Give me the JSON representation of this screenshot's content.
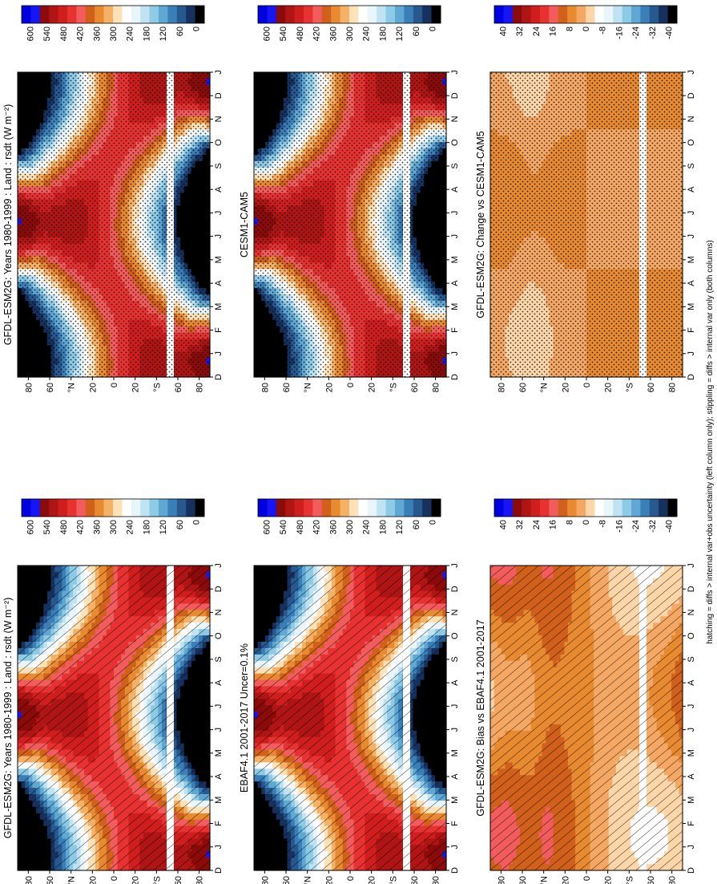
{
  "figure": {
    "footnote": "hatching = diffs > internal var+obs uncertainty (left column only); stippling = diffs > internal var only (both columns)"
  },
  "chart_data": [
    {
      "type": "heatmap",
      "title": "GFDL-ESM2G: Years 1980-1999 : Land : rsdt (W m⁻²)",
      "x_ticks": [
        "D",
        "J",
        "F",
        "M",
        "A",
        "M",
        "J",
        "J",
        "A",
        "S",
        "O",
        "N",
        "D",
        "J"
      ],
      "y_ticks": [
        "80",
        "60",
        "°N",
        "20",
        "0",
        "20",
        "°S",
        "60",
        "80"
      ],
      "colorbar": {
        "labels": [
          "600",
          "540",
          "480",
          "420",
          "360",
          "300",
          "240",
          "180",
          "120",
          "60",
          "0"
        ],
        "colors": [
          "#0000e0",
          "#1515f5",
          "#8b0a0a",
          "#b01515",
          "#d01e1e",
          "#e83232",
          "#f25c5c",
          "#d0601a",
          "#e88a30",
          "#f5b266",
          "#fde2b8",
          "#ffffff",
          "#e8f6fc",
          "#bfe3f2",
          "#8ccae6",
          "#5fa8d3",
          "#3a7fb8",
          "#27588e",
          "#16315e",
          "#000000"
        ]
      },
      "overlay": "hatching"
    },
    {
      "type": "heatmap",
      "title": "GFDL-ESM2G: Years 1980-1999 : Land : rsdt (W m⁻²)",
      "x_ticks": [
        "D",
        "J",
        "F",
        "M",
        "A",
        "M",
        "J",
        "J",
        "A",
        "S",
        "O",
        "N",
        "D",
        "J"
      ],
      "y_ticks": [
        "80",
        "60",
        "°N",
        "20",
        "0",
        "20",
        "°S",
        "60",
        "80"
      ],
      "colorbar": {
        "labels": [
          "600",
          "540",
          "480",
          "420",
          "360",
          "300",
          "240",
          "180",
          "120",
          "60",
          "0"
        ]
      },
      "overlay": "stippling"
    },
    {
      "type": "heatmap",
      "title": "EBAF4.1 2001-2017 Uncer=0.1%",
      "x_ticks": [
        "D",
        "J",
        "F",
        "M",
        "A",
        "M",
        "J",
        "J",
        "A",
        "S",
        "O",
        "N",
        "D",
        "J"
      ],
      "y_ticks": [
        "80",
        "60",
        "°N",
        "20",
        "0",
        "20",
        "°S",
        "60",
        "80"
      ],
      "colorbar": {
        "labels": [
          "600",
          "540",
          "480",
          "420",
          "360",
          "300",
          "240",
          "180",
          "120",
          "60",
          "0"
        ]
      },
      "overlay": "hatching"
    },
    {
      "type": "heatmap",
      "title": "CESM1-CAM5",
      "x_ticks": [
        "D",
        "J",
        "F",
        "M",
        "A",
        "M",
        "J",
        "J",
        "A",
        "S",
        "O",
        "N",
        "D",
        "J"
      ],
      "y_ticks": [
        "80",
        "60",
        "°N",
        "20",
        "0",
        "20",
        "°S",
        "60",
        "80"
      ],
      "colorbar": {
        "labels": [
          "600",
          "540",
          "480",
          "420",
          "360",
          "300",
          "240",
          "180",
          "120",
          "60",
          "0"
        ]
      },
      "overlay": "stippling"
    },
    {
      "type": "heatmap",
      "title": "GFDL-ESM2G: Bias vs EBAF4.1 2001-2017",
      "x_ticks": [
        "D",
        "J",
        "F",
        "M",
        "A",
        "M",
        "J",
        "J",
        "A",
        "S",
        "O",
        "N",
        "D",
        "J"
      ],
      "y_ticks": [
        "80",
        "60",
        "°N",
        "20",
        "0",
        "20",
        "°S",
        "60",
        "80"
      ],
      "colorbar": {
        "labels": [
          "40",
          "32",
          "24",
          "16",
          "8",
          "0",
          "-8",
          "-16",
          "-24",
          "-32",
          "-40"
        ],
        "colors": [
          "#0000e0",
          "#1515f5",
          "#8b0a0a",
          "#b01515",
          "#d01e1e",
          "#e83232",
          "#f25c5c",
          "#d0601a",
          "#e88a30",
          "#f5a863",
          "#fcd6a8",
          "#ffffff",
          "#e8f6fc",
          "#bfe3f2",
          "#8ccae6",
          "#5fa8d3",
          "#3a7fb8",
          "#27588e",
          "#16315e",
          "#000000"
        ]
      },
      "overlay": "hatching"
    },
    {
      "type": "heatmap",
      "title": "GFDL-ESM2G: Change vs CESM1-CAM5",
      "x_ticks": [
        "D",
        "J",
        "F",
        "M",
        "A",
        "M",
        "J",
        "J",
        "A",
        "S",
        "O",
        "N",
        "D",
        "J"
      ],
      "y_ticks": [
        "80",
        "60",
        "°N",
        "20",
        "0",
        "20",
        "°S",
        "60",
        "80"
      ],
      "colorbar": {
        "labels": [
          "40",
          "32",
          "24",
          "16",
          "8",
          "0",
          "-8",
          "-16",
          "-24",
          "-32",
          "-40"
        ]
      },
      "overlay": "stippling"
    }
  ]
}
